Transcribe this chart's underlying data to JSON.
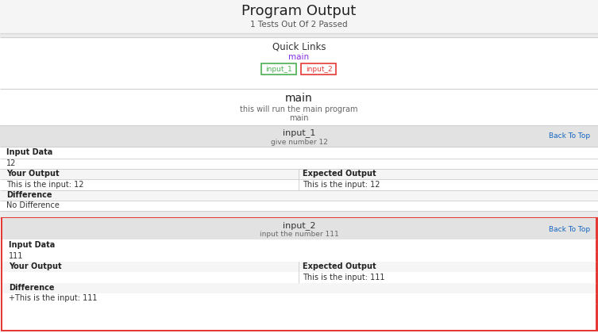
{
  "title": "Program Output",
  "subtitle": "1 Tests Out Of 2 Passed",
  "bg_color": "#ffffff",
  "quick_links_label": "Quick Links",
  "quick_links_main": "main",
  "quick_links_main_color": "#8a2be2",
  "input1_link": "input_1",
  "input1_link_border": "#4CAF50",
  "input1_link_text": "#4CAF50",
  "input2_link": "input_2",
  "input2_link_border": "#e53935",
  "input2_link_text": "#e53935",
  "main_label": "main",
  "main_desc1": "this will run the main program",
  "main_desc2": "main",
  "section1_header": "input_1",
  "section1_subheader": "give number 12",
  "section1_input_label": "Input Data",
  "section1_input_value": "12",
  "section1_your_output_label": "Your Output",
  "section1_your_output_value": "This is the input: 12",
  "section1_expected_label": "Expected Output",
  "section1_expected_value": "This is the input: 12",
  "section1_diff_label": "Difference",
  "section1_diff_value": "No Difference",
  "section2_header": "input_2",
  "section2_subheader": "input the number 111",
  "section2_input_label": "Input Data",
  "section2_input_value": "111",
  "section2_your_output_label": "Your Output",
  "section2_your_output_value": "",
  "section2_expected_label": "Expected Output",
  "section2_expected_value": "This is the input: 111",
  "section2_diff_label": "Difference",
  "section2_diff_value": "+This is the input: 111",
  "back_to_top": "Back To Top",
  "back_to_top_color": "#1565C0",
  "fail_border_color": "#e53935",
  "gray_header_bg": "#e2e2e2",
  "light_gray_row": "#f5f5f5",
  "divider_gap_color": "#ebebeb",
  "cell_line_color": "#cccccc"
}
